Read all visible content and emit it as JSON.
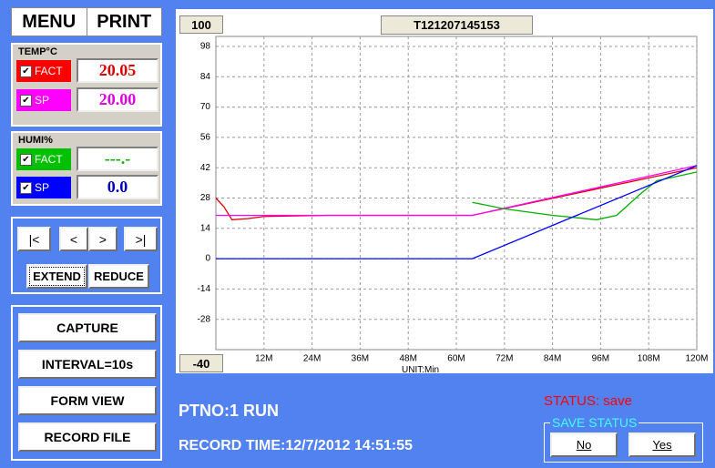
{
  "menu": {
    "menu": "MENU",
    "print": "PRINT"
  },
  "temp": {
    "label": "TEMP°C",
    "fact": {
      "label": "FACT",
      "value": "20.05"
    },
    "sp": {
      "label": "SP",
      "value": "20.00"
    }
  },
  "humi": {
    "label": "HUMI%",
    "fact": {
      "label": "FACT",
      "value": "---.-"
    },
    "sp": {
      "label": "SP",
      "value": "0.0"
    }
  },
  "nav": [
    "|<",
    "<",
    ">",
    ">|"
  ],
  "zoom": [
    "EXTEND",
    "REDUCE"
  ],
  "actions": [
    "CAPTURE",
    "INTERVAL=10s",
    "FORM VIEW",
    "RECORD FILE"
  ],
  "chart_data": {
    "type": "line",
    "title": "T121207145153",
    "y_max_box": "100",
    "y_min_box": "-40",
    "x_unit": "UNIT:Min",
    "xlim": [
      0,
      120
    ],
    "ylim": [
      -42,
      98
    ],
    "xticks": [
      {
        "value": 12,
        "label": "12M"
      },
      {
        "value": 24,
        "label": "24M"
      },
      {
        "value": 36,
        "label": "36M"
      },
      {
        "value": 48,
        "label": "48M"
      },
      {
        "value": 60,
        "label": "60M"
      },
      {
        "value": 72,
        "label": "72M"
      },
      {
        "value": 84,
        "label": "84M"
      },
      {
        "value": 96,
        "label": "96M"
      },
      {
        "value": 108,
        "label": "108M"
      },
      {
        "value": 120,
        "label": "120M"
      }
    ],
    "yticks": [
      98,
      84,
      70,
      56,
      42,
      28,
      14,
      0,
      -14,
      -28
    ],
    "grid": true,
    "series": [
      {
        "color": "#e00000",
        "x": [
          0,
          2,
          4,
          8,
          12,
          28,
          64,
          120
        ],
        "values": [
          28,
          24,
          18,
          18.5,
          19.5,
          20,
          20,
          42
        ]
      },
      {
        "color": "#ff00ff",
        "x": [
          0,
          64,
          120
        ],
        "values": [
          20,
          20,
          43
        ]
      },
      {
        "color": "#00b000",
        "x": [
          64,
          72,
          84,
          95,
          100,
          106,
          110,
          115,
          120
        ],
        "values": [
          26,
          23,
          20,
          18,
          20,
          30,
          36,
          38,
          40
        ]
      },
      {
        "color": "#0000ff",
        "x": [
          0,
          64,
          120
        ],
        "values": [
          0,
          0,
          43
        ]
      }
    ]
  },
  "status": {
    "ptno": "PTNO:1 RUN",
    "record_time": "RECORD TIME:12/7/2012 14:51:55",
    "status": "STATUS: save",
    "save_status": {
      "title": "SAVE STATUS",
      "no": "No",
      "yes": "Yes"
    }
  }
}
